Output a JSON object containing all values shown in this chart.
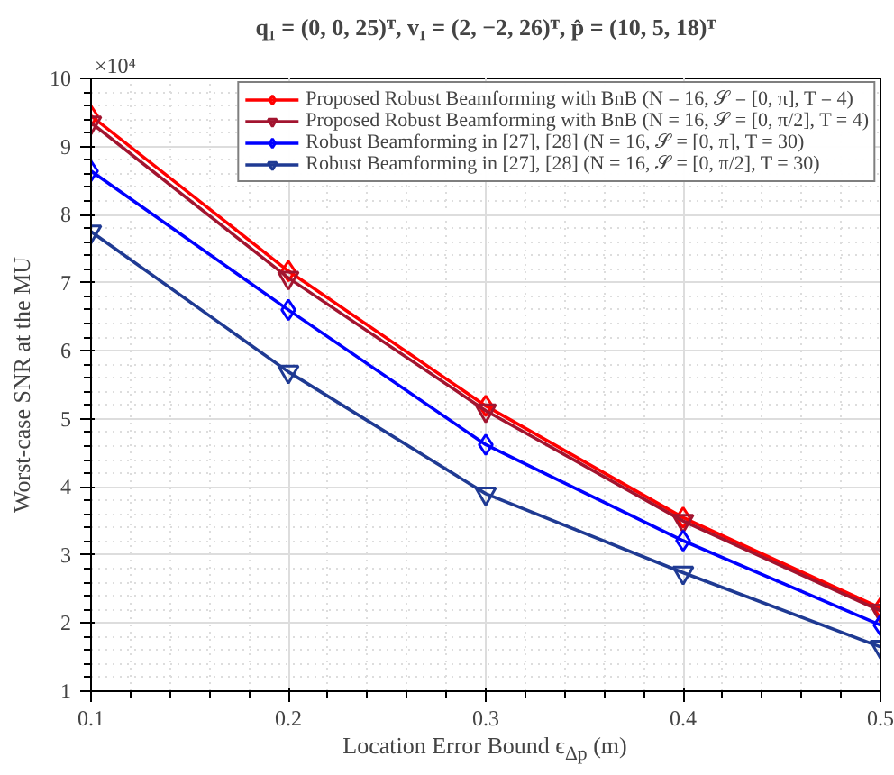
{
  "chart_data": {
    "type": "line",
    "title": "q₁ = (0, 0, 25)ᵀ, v₁ = (2, −2, 26)ᵀ, p̂ = (10, 5, 18)ᵀ",
    "xlabel": "Location Error Bound ϵ$_{Δp}$ (m)",
    "ylabel": "Worst-case SNR at the MU",
    "annotations": [
      "×10⁴"
    ],
    "x": [
      0.1,
      0.2,
      0.3,
      0.4,
      0.5
    ],
    "series": [
      {
        "name": "Proposed Robust Beamforming with BnB (N = 16, 𝒮 = [0, π], T = 4)",
        "color": "#ff0000",
        "marker": "diamond",
        "values": [
          9.45,
          7.17,
          5.19,
          3.55,
          2.22
        ]
      },
      {
        "name": "Proposed Robust Beamforming with BnB (N = 16, 𝒮 = [0, π/2], T = 4)",
        "color": "#a2142f",
        "marker": "triangle",
        "values": [
          9.35,
          7.07,
          5.12,
          3.5,
          2.18
        ]
      },
      {
        "name": "Robust Beamforming in [27], [28] (N = 16, 𝒮 = [0, π], T = 30)",
        "color": "#0000ff",
        "marker": "diamond",
        "values": [
          8.64,
          6.6,
          4.62,
          3.21,
          1.97
        ]
      },
      {
        "name": "Robust Beamforming in [27], [28] (N = 16, 𝒮 = [0, π/2], T = 30)",
        "color": "#1f3a93",
        "marker": "triangle",
        "values": [
          7.75,
          5.69,
          3.9,
          2.74,
          1.65
        ]
      }
    ],
    "xlim": [
      0.1,
      0.5
    ],
    "xticks": [
      0.1,
      0.2,
      0.3,
      0.4,
      0.5
    ],
    "ylim": [
      1,
      10
    ],
    "yticks": [
      1,
      2,
      3,
      4,
      5,
      6,
      7,
      8,
      9,
      10
    ],
    "grid": true,
    "legend": "top right",
    "line_style": "solid"
  }
}
